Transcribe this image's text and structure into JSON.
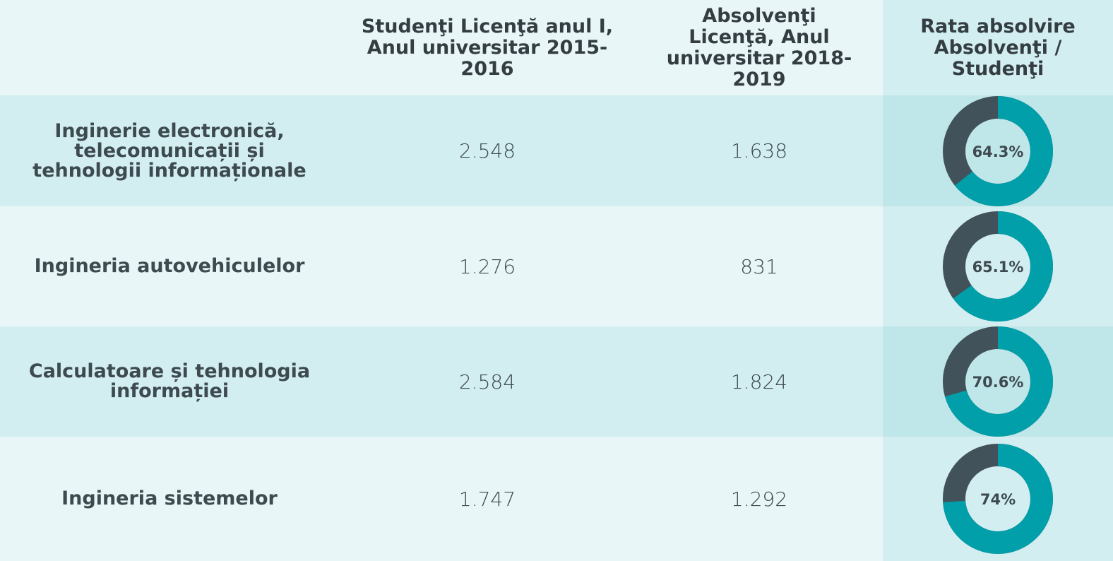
{
  "table": {
    "header": [
      "Studenţi Licenţă anul I, Anul universitar 2015-2016",
      "Absolvenţi Licenţă, Anul universitar 2018-2019",
      "Rata absolvire Absolvenţi / Studenţi"
    ],
    "rows": [
      {
        "name": "Inginerie electronică, telecomunicații și tehnologii informaționale",
        "students": "2.548",
        "graduates": "1.638",
        "rate": 64.3,
        "rate_label": "64.3%"
      },
      {
        "name": "Ingineria autovehiculelor",
        "students": "1.276",
        "graduates": "831",
        "rate": 65.1,
        "rate_label": "65.1%"
      },
      {
        "name": "Calculatoare și tehnologia informației",
        "students": "2.584",
        "graduates": "1.824",
        "rate": 70.6,
        "rate_label": "70.6%"
      },
      {
        "name": "Ingineria sistemelor",
        "students": "1.747",
        "graduates": "1.292",
        "rate": 74,
        "rate_label": "74%"
      }
    ]
  }
}
